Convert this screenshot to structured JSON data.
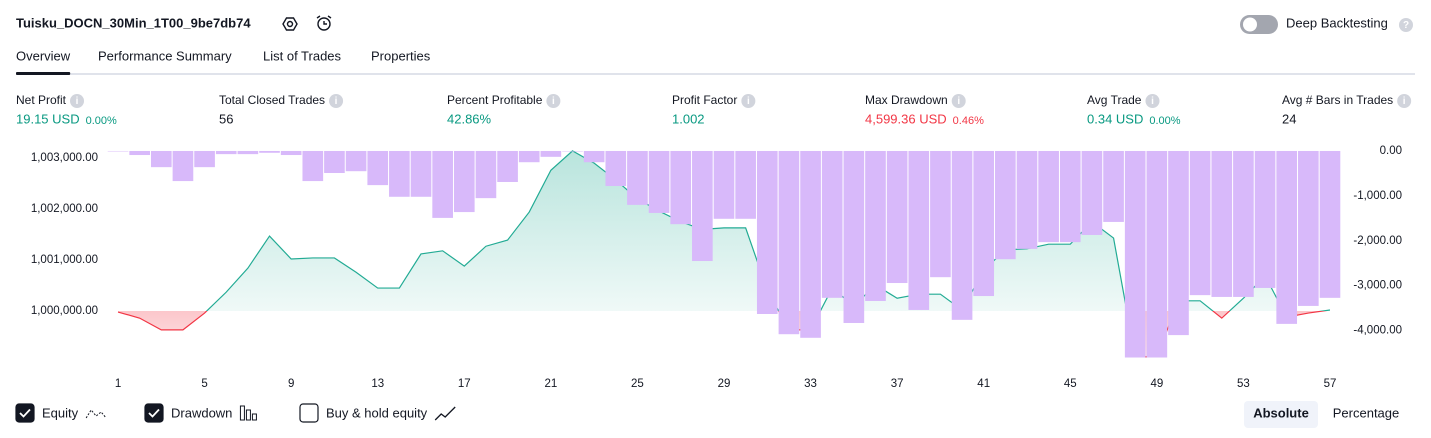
{
  "header": {
    "title": "Tuisku_DOCN_30Min_1T00_9be7db74",
    "toggle_label": "Deep Backtesting",
    "toggle_on": false
  },
  "tabs": [
    "Overview",
    "Performance Summary",
    "List of Trades",
    "Properties"
  ],
  "active_tab": 0,
  "metrics": [
    {
      "label": "Net Profit",
      "value": "19.15 USD",
      "percent": "0.00%",
      "tone": "positive"
    },
    {
      "label": "Total Closed Trades",
      "value": "56",
      "tone": "neutral"
    },
    {
      "label": "Percent Profitable",
      "value": "42.86%",
      "tone": "positive"
    },
    {
      "label": "Profit Factor",
      "value": "1.002",
      "tone": "positive"
    },
    {
      "label": "Max Drawdown",
      "value": "4,599.36 USD",
      "percent": "0.46%",
      "tone": "negative"
    },
    {
      "label": "Avg Trade",
      "value": "0.34 USD",
      "percent": "0.00%",
      "tone": "positive"
    },
    {
      "label": "Avg # Bars in Trades",
      "value": "24",
      "tone": "neutral"
    }
  ],
  "chart_data": {
    "type": "equity",
    "x": [
      1,
      2,
      3,
      4,
      5,
      6,
      7,
      8,
      9,
      10,
      11,
      12,
      13,
      14,
      15,
      16,
      17,
      18,
      19,
      20,
      21,
      22,
      23,
      24,
      25,
      26,
      27,
      28,
      29,
      30,
      31,
      32,
      33,
      34,
      35,
      36,
      37,
      38,
      39,
      40,
      41,
      42,
      43,
      44,
      45,
      46,
      47,
      48,
      49,
      50,
      51,
      52,
      53,
      54,
      55,
      56,
      57
    ],
    "xlim": [
      0.5,
      57.5
    ],
    "xticks": [
      1,
      5,
      9,
      13,
      17,
      21,
      25,
      29,
      33,
      37,
      41,
      45,
      49,
      53,
      57
    ],
    "ylim": [
      998843,
      1003157
    ],
    "yticks": [
      {
        "value": 1000000,
        "label": "1,000,000.00"
      },
      {
        "value": 1001000,
        "label": "1,001,000.00"
      },
      {
        "value": 1002000,
        "label": "1,002,000.00"
      },
      {
        "value": 1003000,
        "label": "1,003,000.00"
      }
    ],
    "y2lim": [
      -4877,
      22
    ],
    "y2ticks": [
      {
        "value": 0,
        "label": "0.00"
      },
      {
        "value": -1000,
        "label": "-1,000.00"
      },
      {
        "value": -2000,
        "label": "-2,000.00"
      },
      {
        "value": -3000,
        "label": "-3,000.00"
      },
      {
        "value": -4000,
        "label": "-4,000.00"
      }
    ],
    "baseline": 1000000,
    "series": [
      {
        "name": "Equity",
        "color": "#22ab94",
        "negative_color": "#f23645",
        "visible": true,
        "values": [
          999980,
          999860,
          999630,
          999630,
          999960,
          1000370,
          1000840,
          1001470,
          1001020,
          1001040,
          1001040,
          1000760,
          1000450,
          1000450,
          1001120,
          1001180,
          1000880,
          1001270,
          1001390,
          1001940,
          1002760,
          1003140,
          1002900,
          1002570,
          1002200,
          1001960,
          1001750,
          1001600,
          1001630,
          1001630,
          1000410,
          999630,
          999630,
          1000450,
          1000100,
          1000510,
          1000250,
          1000330,
          1000330,
          1000020,
          1000800,
          1001200,
          1001220,
          1001310,
          1001310,
          1001750,
          1001430,
          999100,
          999100,
          1000200,
          1000200,
          999860,
          1000250,
          1000690,
          999880,
          999960,
          1000019
        ]
      },
      {
        "name": "Drawdown",
        "color": "#d8b9fa",
        "axis": "y2",
        "visible": true,
        "values": [
          -10,
          -90,
          -360,
          -670,
          -360,
          -70,
          -70,
          -40,
          -90,
          -670,
          -490,
          -450,
          -760,
          -1020,
          -1020,
          -1490,
          -1360,
          -1050,
          -690,
          -250,
          -130,
          -10,
          -250,
          -780,
          -1200,
          -1380,
          -1630,
          -2450,
          -1510,
          -1510,
          -3630,
          -4080,
          -4160,
          -3270,
          -3830,
          -3340,
          -2940,
          -3540,
          -2810,
          -3760,
          -3230,
          -2410,
          -2180,
          -2030,
          -2030,
          -1870,
          -1580,
          -4599,
          -4599,
          -4100,
          -3210,
          -3250,
          -3250,
          -3050,
          -3850,
          -3450,
          -3270
        ]
      }
    ]
  },
  "buy_hold": {
    "label": "Buy & hold equity",
    "checked": false
  },
  "view_modes": [
    "Absolute",
    "Percentage"
  ],
  "active_view": 0
}
